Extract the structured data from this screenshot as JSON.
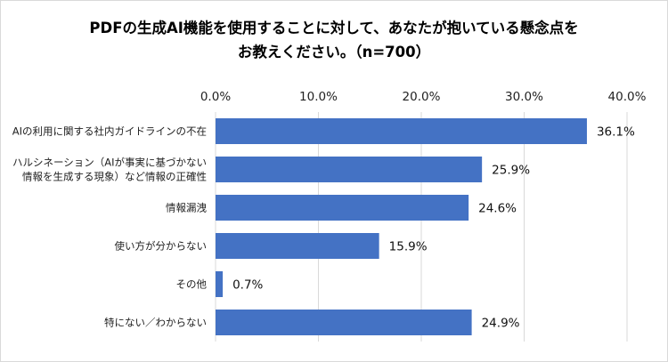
{
  "chart_data": {
    "type": "bar",
    "orientation": "horizontal",
    "title_lines": [
      "PDFの生成AI機能を使用することに対して、あなたが抱いている懸念点を",
      "お教えください。（n=700）"
    ],
    "categories": [
      [
        "AIの利用に関する社内ガイドラインの不在"
      ],
      [
        "ハルシネーション（AIが事実に基づかない",
        "情報を生成する現象）など情報の正確性"
      ],
      [
        "情報漏洩"
      ],
      [
        "使い方が分からない"
      ],
      [
        "その他"
      ],
      [
        "特にない／わからない"
      ]
    ],
    "values": [
      36.1,
      25.9,
      24.6,
      15.9,
      0.7,
      24.9
    ],
    "value_labels": [
      "36.1%",
      "25.9%",
      "24.6%",
      "15.9%",
      "0.7%",
      "24.9%"
    ],
    "xlim": [
      0,
      40
    ],
    "xticks": [
      0,
      10,
      20,
      30,
      40
    ],
    "xtick_labels": [
      "0.0%",
      "10.0%",
      "20.0%",
      "30.0%",
      "40.0%"
    ],
    "axis_position": "top",
    "grid": true,
    "bar_color": "#4472c4",
    "grid_color": "#d9d9d9"
  }
}
